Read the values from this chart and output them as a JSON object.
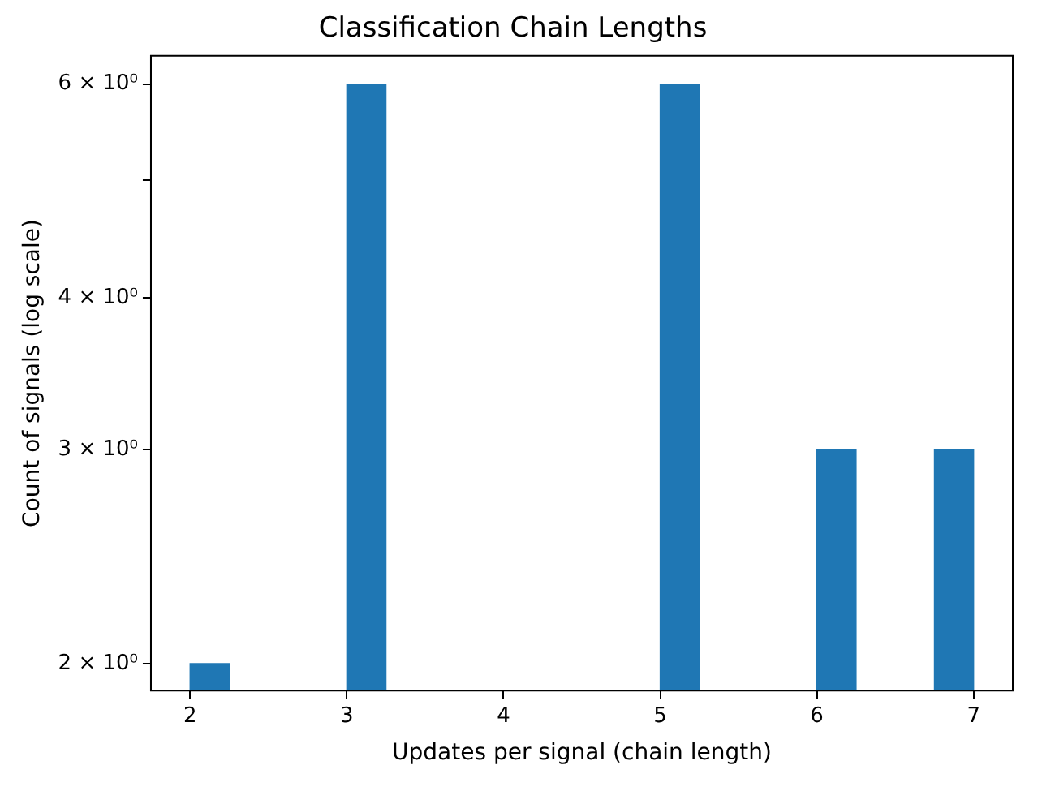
{
  "chart_data": {
    "type": "histogram",
    "title": "Classification Chain Lengths",
    "xlabel": "Updates per signal (chain length)",
    "ylabel": "Count of signals (log scale)",
    "bins": [
      2,
      2.25,
      2.5,
      2.75,
      3,
      3.25,
      3.5,
      3.75,
      4,
      4.25,
      4.5,
      4.75,
      5,
      5.25,
      5.5,
      5.75,
      6,
      6.25,
      6.5,
      6.75,
      7
    ],
    "values": [
      2,
      null,
      null,
      null,
      6,
      null,
      null,
      null,
      null,
      null,
      null,
      null,
      6,
      null,
      null,
      null,
      3,
      null,
      null,
      3
    ],
    "color": "#1f77b4",
    "log": "y",
    "grid": false,
    "legend": false,
    "xlim": [
      1.75,
      7.25
    ],
    "xticks": [
      2,
      3,
      4,
      5,
      6,
      7
    ],
    "ylim": [
      1.9,
      6.33
    ],
    "yticks": [
      {
        "value": 2,
        "label": "2 × 10⁰"
      },
      {
        "value": 3,
        "label": "3 × 10⁰"
      },
      {
        "value": 4,
        "label": "4 × 10⁰"
      },
      {
        "value": 5,
        "label": null
      },
      {
        "value": 6,
        "label": "6 × 10⁰"
      }
    ]
  }
}
